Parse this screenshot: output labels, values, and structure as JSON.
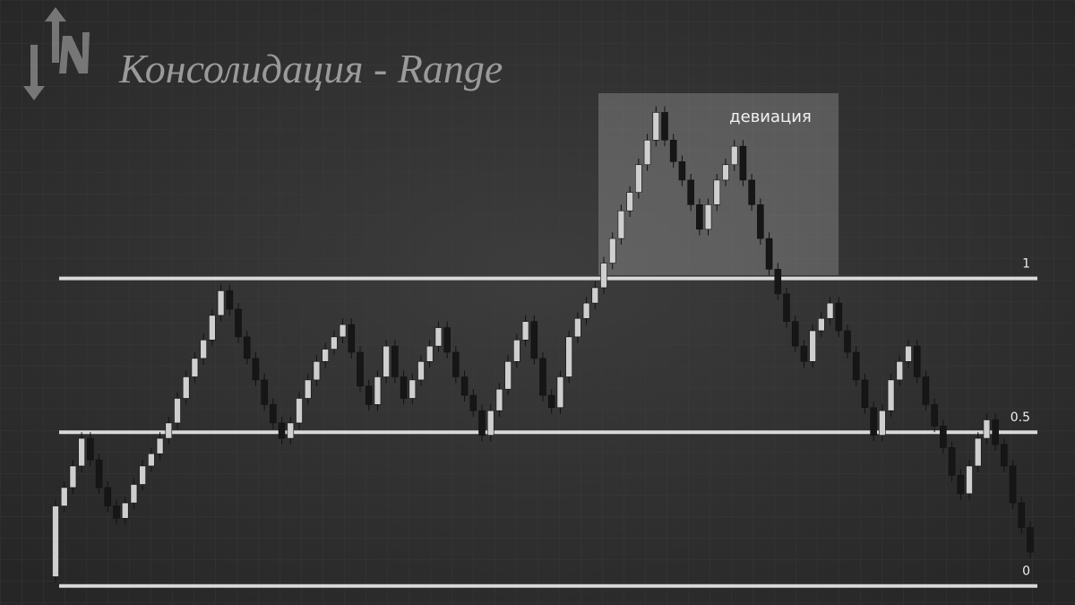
{
  "chart_data": {
    "type": "candlestick",
    "title": "Консолидация - Range",
    "annotation": "девиация",
    "ylim": [
      -0.03,
      1.62
    ],
    "levels": [
      1,
      0.5,
      0
    ],
    "bull_color": "#cfcfcf",
    "bear_color": "#161616",
    "level_color": "#d9d9d9",
    "candles": [
      [
        0.03,
        0.28,
        0.01,
        0.26
      ],
      [
        0.26,
        0.34,
        0.24,
        0.32
      ],
      [
        0.32,
        0.41,
        0.3,
        0.39
      ],
      [
        0.39,
        0.5,
        0.37,
        0.48
      ],
      [
        0.48,
        0.5,
        0.39,
        0.41
      ],
      [
        0.41,
        0.43,
        0.3,
        0.32
      ],
      [
        0.32,
        0.34,
        0.24,
        0.26
      ],
      [
        0.26,
        0.28,
        0.2,
        0.22
      ],
      [
        0.22,
        0.29,
        0.2,
        0.27
      ],
      [
        0.27,
        0.35,
        0.25,
        0.33
      ],
      [
        0.33,
        0.41,
        0.31,
        0.39
      ],
      [
        0.39,
        0.45,
        0.37,
        0.43
      ],
      [
        0.43,
        0.5,
        0.41,
        0.48
      ],
      [
        0.48,
        0.55,
        0.46,
        0.53
      ],
      [
        0.53,
        0.63,
        0.51,
        0.61
      ],
      [
        0.61,
        0.7,
        0.59,
        0.68
      ],
      [
        0.68,
        0.76,
        0.66,
        0.74
      ],
      [
        0.74,
        0.82,
        0.72,
        0.8
      ],
      [
        0.8,
        0.9,
        0.78,
        0.88
      ],
      [
        0.88,
        0.98,
        0.86,
        0.96
      ],
      [
        0.96,
        0.98,
        0.88,
        0.9
      ],
      [
        0.9,
        0.92,
        0.79,
        0.81
      ],
      [
        0.81,
        0.83,
        0.72,
        0.74
      ],
      [
        0.74,
        0.76,
        0.65,
        0.67
      ],
      [
        0.67,
        0.69,
        0.57,
        0.59
      ],
      [
        0.59,
        0.61,
        0.51,
        0.53
      ],
      [
        0.53,
        0.55,
        0.46,
        0.48
      ],
      [
        0.48,
        0.55,
        0.46,
        0.53
      ],
      [
        0.53,
        0.63,
        0.51,
        0.61
      ],
      [
        0.61,
        0.69,
        0.59,
        0.67
      ],
      [
        0.67,
        0.75,
        0.65,
        0.73
      ],
      [
        0.73,
        0.79,
        0.71,
        0.77
      ],
      [
        0.77,
        0.83,
        0.75,
        0.81
      ],
      [
        0.81,
        0.87,
        0.79,
        0.85
      ],
      [
        0.85,
        0.87,
        0.74,
        0.76
      ],
      [
        0.76,
        0.78,
        0.63,
        0.65
      ],
      [
        0.65,
        0.67,
        0.57,
        0.59
      ],
      [
        0.59,
        0.7,
        0.57,
        0.68
      ],
      [
        0.68,
        0.8,
        0.66,
        0.78
      ],
      [
        0.78,
        0.8,
        0.66,
        0.68
      ],
      [
        0.68,
        0.7,
        0.59,
        0.61
      ],
      [
        0.61,
        0.69,
        0.59,
        0.67
      ],
      [
        0.67,
        0.75,
        0.65,
        0.73
      ],
      [
        0.73,
        0.8,
        0.71,
        0.78
      ],
      [
        0.78,
        0.86,
        0.76,
        0.84
      ],
      [
        0.84,
        0.86,
        0.74,
        0.76
      ],
      [
        0.76,
        0.78,
        0.66,
        0.68
      ],
      [
        0.68,
        0.7,
        0.6,
        0.62
      ],
      [
        0.62,
        0.64,
        0.55,
        0.57
      ],
      [
        0.57,
        0.59,
        0.47,
        0.49
      ],
      [
        0.49,
        0.59,
        0.47,
        0.57
      ],
      [
        0.57,
        0.66,
        0.55,
        0.64
      ],
      [
        0.64,
        0.75,
        0.62,
        0.73
      ],
      [
        0.73,
        0.82,
        0.71,
        0.8
      ],
      [
        0.8,
        0.88,
        0.78,
        0.86
      ],
      [
        0.86,
        0.88,
        0.72,
        0.74
      ],
      [
        0.74,
        0.76,
        0.6,
        0.62
      ],
      [
        0.62,
        0.64,
        0.56,
        0.58
      ],
      [
        0.58,
        0.7,
        0.56,
        0.68
      ],
      [
        0.68,
        0.83,
        0.66,
        0.81
      ],
      [
        0.81,
        0.89,
        0.79,
        0.87
      ],
      [
        0.87,
        0.94,
        0.85,
        0.92
      ],
      [
        0.92,
        0.99,
        0.9,
        0.97
      ],
      [
        0.97,
        1.07,
        0.95,
        1.05
      ],
      [
        1.05,
        1.15,
        1.03,
        1.13
      ],
      [
        1.13,
        1.24,
        1.11,
        1.22
      ],
      [
        1.22,
        1.3,
        1.2,
        1.28
      ],
      [
        1.28,
        1.39,
        1.26,
        1.37
      ],
      [
        1.37,
        1.47,
        1.35,
        1.45
      ],
      [
        1.45,
        1.56,
        1.43,
        1.54
      ],
      [
        1.54,
        1.56,
        1.43,
        1.45
      ],
      [
        1.45,
        1.47,
        1.36,
        1.38
      ],
      [
        1.38,
        1.4,
        1.3,
        1.32
      ],
      [
        1.32,
        1.34,
        1.22,
        1.24
      ],
      [
        1.24,
        1.26,
        1.14,
        1.16
      ],
      [
        1.16,
        1.26,
        1.14,
        1.24
      ],
      [
        1.24,
        1.34,
        1.22,
        1.32
      ],
      [
        1.32,
        1.39,
        1.3,
        1.37
      ],
      [
        1.37,
        1.45,
        1.35,
        1.43
      ],
      [
        1.43,
        1.45,
        1.3,
        1.32
      ],
      [
        1.32,
        1.34,
        1.22,
        1.24
      ],
      [
        1.24,
        1.26,
        1.11,
        1.13
      ],
      [
        1.13,
        1.15,
        1.01,
        1.03
      ],
      [
        1.03,
        1.05,
        0.93,
        0.95
      ],
      [
        0.95,
        0.97,
        0.84,
        0.86
      ],
      [
        0.86,
        0.88,
        0.76,
        0.78
      ],
      [
        0.78,
        0.8,
        0.71,
        0.73
      ],
      [
        0.73,
        0.85,
        0.71,
        0.83
      ],
      [
        0.83,
        0.89,
        0.81,
        0.87
      ],
      [
        0.87,
        0.94,
        0.85,
        0.92
      ],
      [
        0.92,
        0.94,
        0.81,
        0.83
      ],
      [
        0.83,
        0.85,
        0.74,
        0.76
      ],
      [
        0.76,
        0.78,
        0.65,
        0.67
      ],
      [
        0.67,
        0.69,
        0.56,
        0.58
      ],
      [
        0.58,
        0.6,
        0.47,
        0.49
      ],
      [
        0.49,
        0.59,
        0.47,
        0.57
      ],
      [
        0.57,
        0.69,
        0.55,
        0.67
      ],
      [
        0.67,
        0.75,
        0.65,
        0.73
      ],
      [
        0.73,
        0.8,
        0.71,
        0.78
      ],
      [
        0.78,
        0.8,
        0.66,
        0.68
      ],
      [
        0.68,
        0.7,
        0.57,
        0.59
      ],
      [
        0.59,
        0.61,
        0.5,
        0.52
      ],
      [
        0.52,
        0.54,
        0.43,
        0.45
      ],
      [
        0.45,
        0.47,
        0.34,
        0.36
      ],
      [
        0.36,
        0.38,
        0.28,
        0.3
      ],
      [
        0.3,
        0.41,
        0.28,
        0.39
      ],
      [
        0.39,
        0.5,
        0.37,
        0.48
      ],
      [
        0.48,
        0.56,
        0.46,
        0.54
      ],
      [
        0.54,
        0.56,
        0.44,
        0.46
      ],
      [
        0.46,
        0.48,
        0.37,
        0.39
      ],
      [
        0.39,
        0.41,
        0.25,
        0.27
      ],
      [
        0.27,
        0.29,
        0.17,
        0.19
      ],
      [
        0.19,
        0.21,
        0.09,
        0.11
      ]
    ]
  }
}
